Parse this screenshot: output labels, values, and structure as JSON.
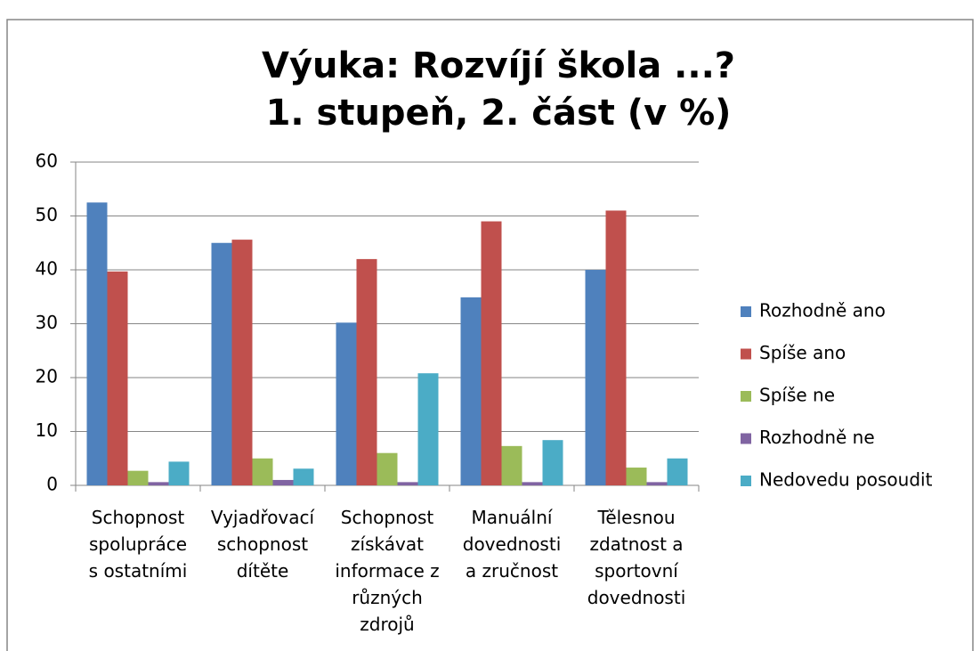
{
  "chart_data": {
    "type": "bar",
    "title": [
      "Výuka: Rozvíjí škola ...?",
      "1. stupeň, 2. část (v %)"
    ],
    "categories": [
      "Schopnost\nspolupráce\ns ostatními",
      "Vyjadřovací\nschopnost\ndítěte",
      "Schopnost\nzískávat\ninformace z\nrůzných\nzdrojů",
      "Manuální\ndovednosti\na zručnost",
      "Tělesnou\nzdatnost a\nsportovní\ndovednosti"
    ],
    "series": [
      {
        "name": "Rozhodně ano",
        "color": "#4f81bd",
        "values": [
          52.5,
          45,
          30.2,
          34.9,
          40
        ]
      },
      {
        "name": "Spíše ano",
        "color": "#c0504d",
        "values": [
          39.7,
          45.6,
          42,
          49,
          51
        ]
      },
      {
        "name": "Spíše ne",
        "color": "#9bbb59",
        "values": [
          2.7,
          5,
          6,
          7.3,
          3.3
        ]
      },
      {
        "name": "Rozhodně ne",
        "color": "#8064a2",
        "values": [
          0.6,
          1,
          0.6,
          0.6,
          0.6
        ]
      },
      {
        "name": "Nedovedu posoudit",
        "color": "#4bacc6",
        "values": [
          4.4,
          3.1,
          20.8,
          8.4,
          5
        ]
      }
    ],
    "ylim": [
      0,
      60
    ],
    "yticks": [
      0,
      10,
      20,
      30,
      40,
      50,
      60
    ],
    "grid": true,
    "legend": "right"
  }
}
